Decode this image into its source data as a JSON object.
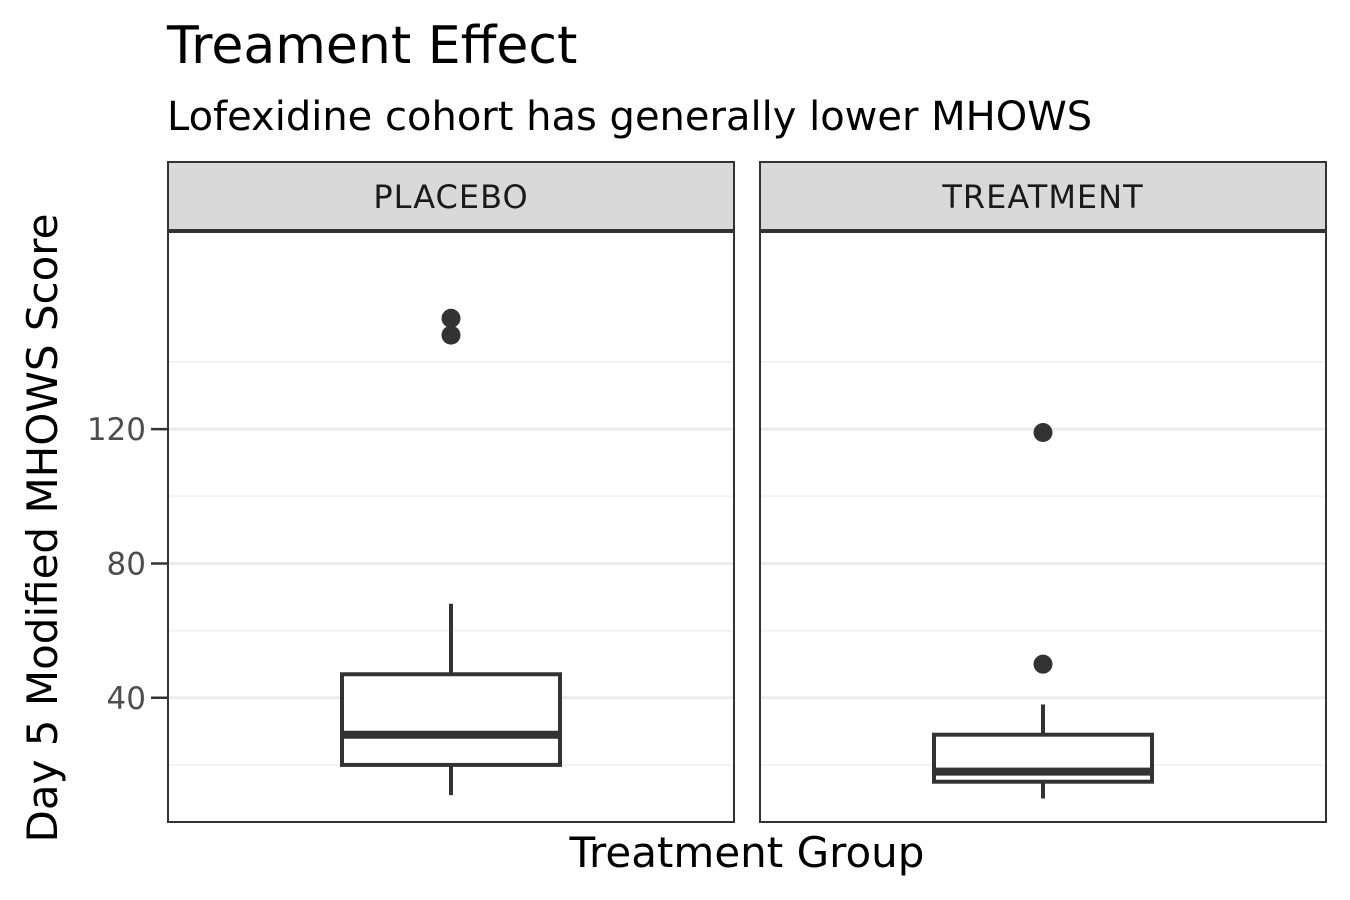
{
  "chart_data": {
    "type": "boxplot",
    "title": "Treament Effect",
    "subtitle": "Lofexidine cohort has generally lower MHOWS",
    "xlabel": "Treatment Group",
    "ylabel": "Day 5 Modified MHOWS Score",
    "ylim": [
      3,
      179
    ],
    "y_ticks": [
      40,
      80,
      120
    ],
    "y_tick_labels": [
      "40",
      "80",
      "120"
    ],
    "y_minor_ticks": [
      20,
      60,
      100,
      140
    ],
    "grid": true,
    "facets": [
      {
        "label": "PLACEBO",
        "box": {
          "lower_whisker": 11,
          "q1": 20,
          "median": 29,
          "q3": 47,
          "upper_whisker": 68
        },
        "outliers": [
          148,
          153
        ]
      },
      {
        "label": "TREATMENT",
        "box": {
          "lower_whisker": 10,
          "q1": 15,
          "median": 18,
          "q3": 29,
          "upper_whisker": 38
        },
        "outliers": [
          50,
          119
        ]
      }
    ],
    "colors": {
      "box_stroke": "#333333",
      "strip_fill": "#d9d9d9",
      "panel_border": "#333333",
      "grid_major": "#ebebeb",
      "grid_minor": "#f2f2f2",
      "tick_text": "#4d4d4d"
    }
  }
}
